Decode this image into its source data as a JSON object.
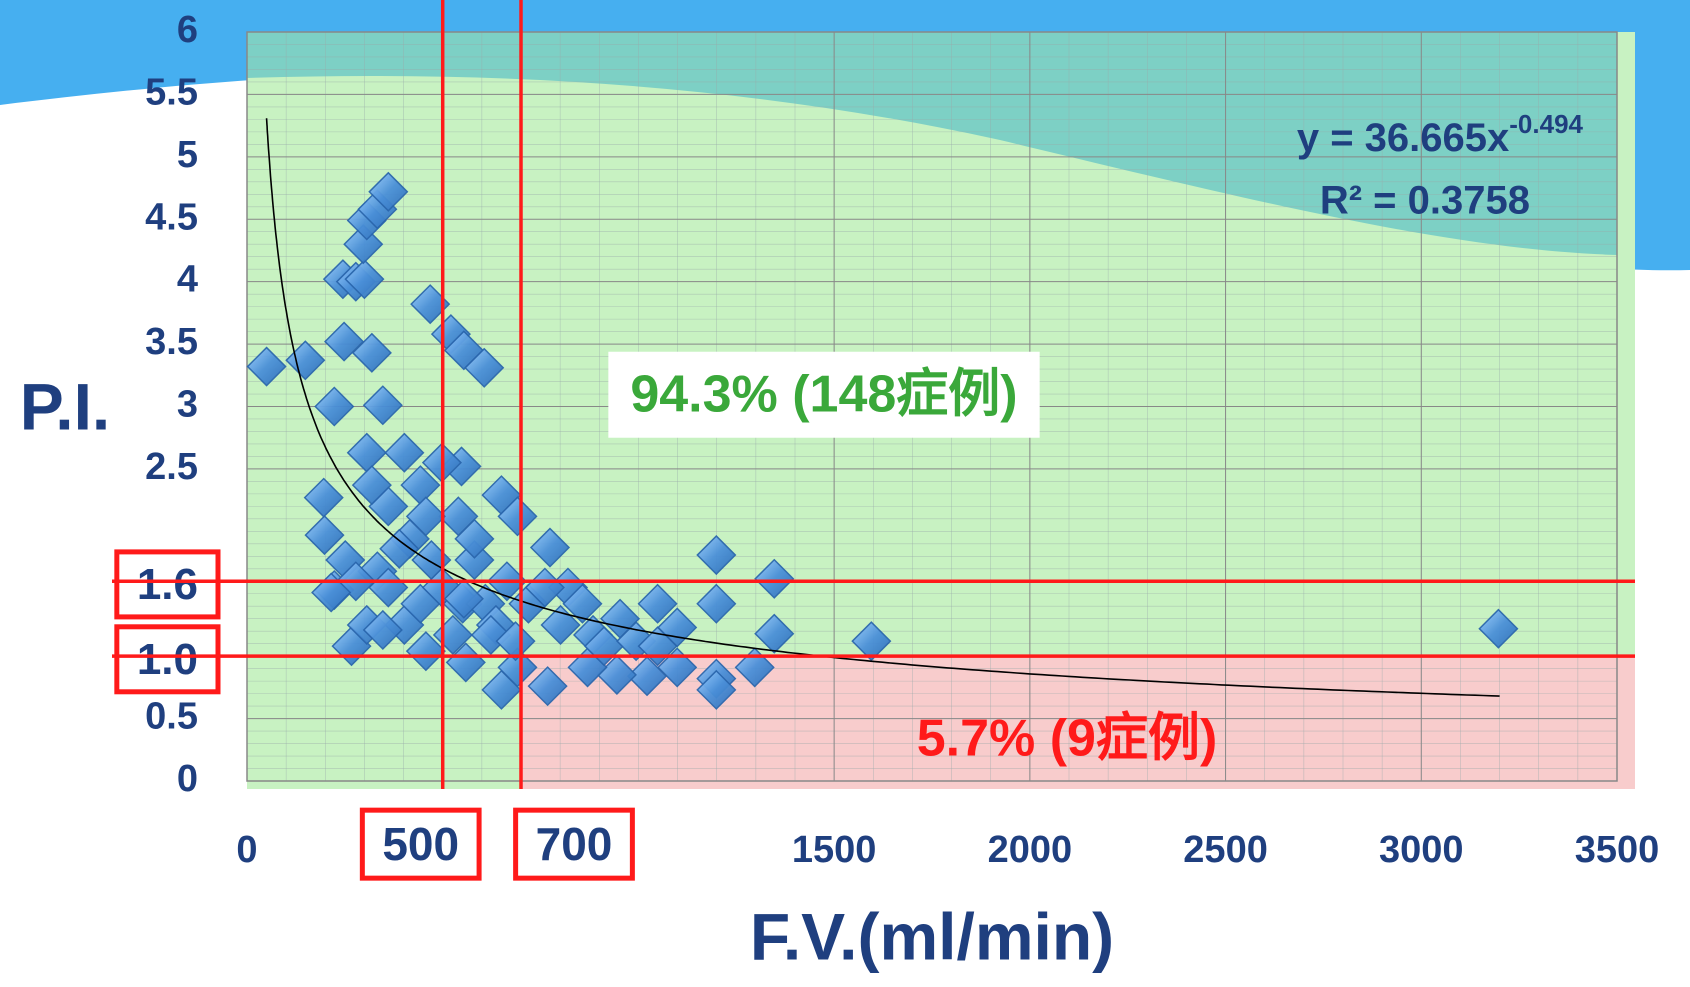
{
  "chart_data": {
    "type": "scatter",
    "x_label": "F.V.(ml/min)",
    "y_label": "P.I.",
    "x": [
      50,
      149,
      223,
      248,
      319,
      347,
      196,
      198,
      223,
      267,
      245,
      278,
      300,
      297,
      306,
      333,
      361,
      468,
      521,
      554,
      606,
      306,
      402,
      548,
      650,
      691,
      774,
      820,
      857,
      953,
      1049,
      1099,
      1199,
      1199,
      1347,
      1347,
      1595,
      3197,
      1199,
      1199,
      1297,
      1099,
      1022,
      945,
      870,
      768,
      650,
      559,
      691,
      457,
      526,
      333,
      361,
      402,
      443,
      471,
      498,
      551,
      581,
      609,
      636,
      664,
      416,
      361,
      319,
      443,
      498,
      540,
      581,
      251,
      278,
      215,
      306,
      347,
      719,
      761,
      801,
      884,
      912,
      994,
      1049,
      457,
      389,
      554,
      623,
      686
    ],
    "y": [
      3.32,
      3.37,
      3.0,
      3.52,
      3.43,
      3.01,
      2.27,
      1.97,
      1.53,
      1.08,
      4.02,
      4.0,
      4.02,
      4.3,
      4.49,
      4.58,
      4.72,
      3.82,
      3.58,
      3.45,
      3.31,
      2.63,
      2.63,
      2.52,
      2.29,
      2.12,
      1.87,
      1.55,
      1.42,
      1.3,
      1.42,
      1.23,
      1.81,
      1.42,
      1.62,
      1.18,
      1.12,
      1.22,
      0.82,
      0.73,
      0.91,
      0.91,
      0.84,
      0.85,
      0.91,
      0.76,
      0.73,
      0.95,
      0.91,
      1.04,
      1.17,
      1.68,
      1.55,
      1.25,
      1.42,
      1.77,
      1.55,
      1.42,
      1.77,
      1.42,
      1.25,
      1.6,
      1.94,
      2.2,
      2.37,
      2.37,
      2.55,
      2.12,
      1.94,
      1.77,
      1.6,
      1.51,
      1.25,
      1.21,
      1.42,
      1.55,
      1.25,
      1.17,
      1.08,
      1.12,
      1.08,
      2.12,
      1.86,
      1.46,
      1.17,
      1.12
    ],
    "color": "#4a8fd8",
    "xlim": [
      0,
      3500
    ],
    "xticks": [
      0,
      500,
      700,
      1500,
      2000,
      2500,
      3000,
      3500
    ],
    "ylim": [
      0,
      6
    ],
    "yticks": [
      0,
      0.5,
      {
        "value": 1,
        "label": "1.0"
      },
      1.6,
      2.5,
      3,
      3.5,
      4,
      4.5,
      5,
      5.5,
      6
    ],
    "grid": true,
    "reference_lines": {
      "x": [
        500,
        700
      ],
      "y": [
        1.6,
        1
      ],
      "color": "#ff1a1a"
    },
    "low_region": {
      "xmin": 700,
      "ymax": 1,
      "color": "#f8cccc"
    },
    "trendline": {
      "type": "power",
      "coefficient": 36.665,
      "exponent": -0.494,
      "x_range": [
        50,
        3200
      ],
      "color": "#000000"
    },
    "equation": {
      "text": "y = 36.665x",
      "superscript": "-0.494"
    },
    "r_squared": "R² = 0.3758",
    "annotations": [
      {
        "text": "94.3% (148症例)",
        "color": "#3aa83a",
        "boxed": true
      },
      {
        "text": "5.7% (9症例)",
        "color": "#ff1a1a",
        "boxed": false
      }
    ]
  }
}
